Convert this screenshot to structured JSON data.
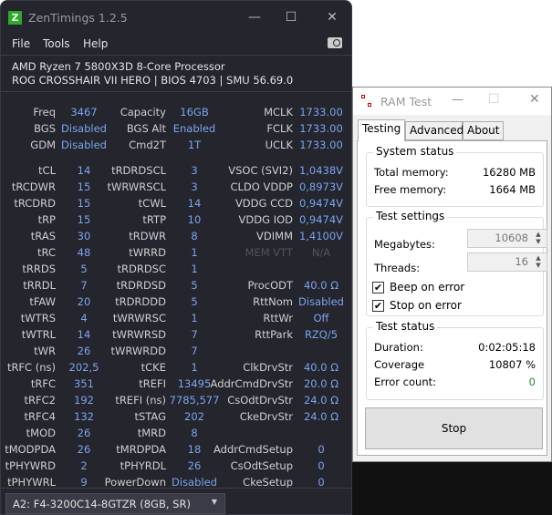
{
  "zentimings": {
    "title": "ZenTimings 1.2.5",
    "logo": "Z",
    "menu": [
      "File",
      "Tools",
      "Help"
    ],
    "cpu": "AMD Ryzen 7 5800X3D 8-Core Processor",
    "board": "ROG CROSSHAIR VII HERO | BIOS 4703 | SMU 56.69.0",
    "value_color": "#7ba5ee",
    "rows": [
      [
        [
          "Freq",
          "3467"
        ],
        [
          "Capacity",
          "16GB"
        ],
        [
          "MCLK",
          "1733.00"
        ]
      ],
      [
        [
          "BGS",
          "Disabled"
        ],
        [
          "BGS Alt",
          "Enabled"
        ],
        [
          "FCLK",
          "1733.00"
        ]
      ],
      [
        [
          "GDM",
          "Disabled"
        ],
        [
          "Cmd2T",
          "1T"
        ],
        [
          "UCLK",
          "1733.00"
        ]
      ],
      null,
      [
        [
          "tCL",
          "14"
        ],
        [
          "tRDRDSCL",
          "3"
        ],
        [
          "VSOC (SVI2)",
          "1,0438V"
        ]
      ],
      [
        [
          "tRCDWR",
          "15"
        ],
        [
          "tWRWRSCL",
          "3"
        ],
        [
          "CLDO VDDP",
          "0,8973V"
        ]
      ],
      [
        [
          "tRCDRD",
          "15"
        ],
        [
          "tCWL",
          "14"
        ],
        [
          "VDDG CCD",
          "0,9474V"
        ]
      ],
      [
        [
          "tRP",
          "15"
        ],
        [
          "tRTP",
          "10"
        ],
        [
          "VDDG IOD",
          "0,9474V"
        ]
      ],
      [
        [
          "tRAS",
          "30"
        ],
        [
          "tRDWR",
          "8"
        ],
        [
          "VDIMM",
          "1,4100V"
        ]
      ],
      [
        [
          "tRC",
          "48"
        ],
        [
          "tWRRD",
          "1"
        ],
        [
          "MEM VTT",
          "N/A"
        ]
      ],
      [
        [
          "tRRDS",
          "5"
        ],
        [
          "tRDRDSC",
          "1"
        ],
        [
          "",
          ""
        ]
      ],
      [
        [
          "tRRDL",
          "7"
        ],
        [
          "tRDRDSD",
          "5"
        ],
        [
          "ProcODT",
          "40.0 Ω"
        ]
      ],
      [
        [
          "tFAW",
          "20"
        ],
        [
          "tRDRDDD",
          "5"
        ],
        [
          "RttNom",
          "Disabled"
        ]
      ],
      [
        [
          "tWTRS",
          "4"
        ],
        [
          "tWRWRSC",
          "1"
        ],
        [
          "RttWr",
          "Off"
        ]
      ],
      [
        [
          "tWTRL",
          "14"
        ],
        [
          "tWRWRSD",
          "7"
        ],
        [
          "RttPark",
          "RZQ/5"
        ]
      ],
      [
        [
          "tWR",
          "26"
        ],
        [
          "tWRWRDD",
          "7"
        ],
        [
          "",
          ""
        ]
      ],
      [
        [
          "tRFC (ns)",
          "202,5"
        ],
        [
          "tCKE",
          "1"
        ],
        [
          "ClkDrvStr",
          "40.0 Ω"
        ]
      ],
      [
        [
          "tRFC",
          "351"
        ],
        [
          "tREFI",
          "13495"
        ],
        [
          "AddrCmdDrvStr",
          "20.0 Ω"
        ]
      ],
      [
        [
          "tRFC2",
          "192"
        ],
        [
          "tREFI (ns)",
          "7785,577"
        ],
        [
          "CsOdtDrvStr",
          "24.0 Ω"
        ]
      ],
      [
        [
          "tRFC4",
          "132"
        ],
        [
          "tSTAG",
          "202"
        ],
        [
          "CkeDrvStr",
          "24.0 Ω"
        ]
      ],
      [
        [
          "tMOD",
          "26"
        ],
        [
          "tMRD",
          "8"
        ],
        [
          "",
          ""
        ]
      ],
      [
        [
          "tMODPDA",
          "26"
        ],
        [
          "tMRDPDA",
          "18"
        ],
        [
          "AddrCmdSetup",
          "0"
        ]
      ],
      [
        [
          "tPHYWRD",
          "2"
        ],
        [
          "tPHYRDL",
          "26"
        ],
        [
          "CsOdtSetup",
          "0"
        ]
      ],
      [
        [
          "tPHYWRL",
          "9"
        ],
        [
          "PowerDown",
          "Disabled"
        ],
        [
          "CkeSetup",
          "0"
        ]
      ]
    ],
    "disabled_field": "MEM VTT",
    "module_select": "A2: F4-3200C14-8GTZR (8GB, SR)"
  },
  "ramtest": {
    "title": "RAM Test",
    "tabs": [
      "Testing",
      "Advanced",
      "About"
    ],
    "system_status": {
      "label": "System status",
      "total_label": "Total memory:",
      "total": "16280 MB",
      "free_label": "Free memory:",
      "free": "1664 MB"
    },
    "test_settings": {
      "label": "Test settings",
      "megabytes_label": "Megabytes:",
      "megabytes": "10608",
      "threads_label": "Threads:",
      "threads": "16",
      "beep_label": "Beep on error",
      "beep_checked": true,
      "stop_label": "Stop on error",
      "stop_checked": true
    },
    "test_status": {
      "label": "Test status",
      "duration_label": "Duration:",
      "duration": "0:02:05:18",
      "coverage_label": "Coverage",
      "coverage": "10807 %",
      "errors_label": "Error count:",
      "errors": "0",
      "errors_color": "#2a8a2a"
    },
    "stop_button": "Stop"
  }
}
